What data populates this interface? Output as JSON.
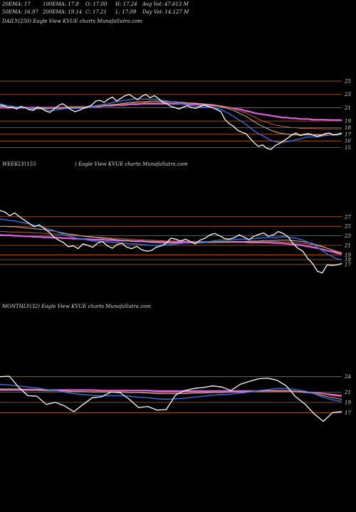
{
  "header": {
    "row1": [
      "20EMA: 17",
      "100EMA: 17.8",
      "O: 17.00",
      "H: 17.24",
      "Avg Vol: 47.613 M"
    ],
    "row2": [
      "50EMA: 16.97",
      "200EMA: 19.14",
      "C: 17.21",
      "L: 17.09",
      "Day Vol: 14.127 M"
    ]
  },
  "panels": {
    "daily_label": "DAILY(250) Eagle  View KVUE charts MunafaSutra.com",
    "weekly_label_left": "WEEKLY(155",
    "weekly_label_right": ") Eagle  View KVUE charts MunafaSutra.com",
    "monthly_label": "MONTHLY(32) Eagle  View KVUE charts MunafaSutra.com"
  },
  "colors": {
    "price": "#ffffff",
    "ema20": "#3b6fe0",
    "ema50": "#c9b991",
    "ema100": "#c05a38",
    "ema200": "#e060e0",
    "level": "#c0601a"
  },
  "chart_data": [
    {
      "type": "line",
      "name": "daily",
      "yticks": [
        25,
        23,
        21,
        19,
        18,
        17,
        16,
        15
      ],
      "ylim": [
        14.2,
        26.5
      ],
      "series": [
        {
          "name": "price",
          "values": [
            21.4,
            21.3,
            21.0,
            21.1,
            20.8,
            21.2,
            21.0,
            20.7,
            20.6,
            21.1,
            20.9,
            20.5,
            20.3,
            20.8,
            21.3,
            21.6,
            21.2,
            20.7,
            20.4,
            20.6,
            20.9,
            21.1,
            21.4,
            22.0,
            22.1,
            21.8,
            22.3,
            22.6,
            22.0,
            22.4,
            22.8,
            23.0,
            22.6,
            22.2,
            22.7,
            23.0,
            22.5,
            22.8,
            22.4,
            21.8,
            21.6,
            21.2,
            21.0,
            20.8,
            21.1,
            21.3,
            21.0,
            20.9,
            21.2,
            21.4,
            21.2,
            21.0,
            20.7,
            20.4,
            19.2,
            18.6,
            18.2,
            17.6,
            17.3,
            17.1,
            16.4,
            15.7,
            15.2,
            15.4,
            14.9,
            14.7,
            15.3,
            15.6,
            16.0,
            16.4,
            16.9,
            17.2,
            16.8,
            17.0,
            17.1,
            16.9,
            16.7,
            16.8,
            17.1,
            17.2,
            16.9,
            17.0,
            17.21
          ]
        },
        {
          "name": "20EMA",
          "values": [
            21.6,
            21.4,
            21.3,
            21.2,
            21.1,
            21.1,
            21.0,
            20.9,
            20.8,
            20.8,
            20.8,
            20.7,
            20.6,
            20.6,
            20.7,
            20.8,
            20.9,
            20.9,
            20.9,
            20.9,
            20.9,
            21.0,
            21.1,
            21.3,
            21.4,
            21.5,
            21.6,
            21.8,
            21.9,
            22.0,
            22.1,
            22.2,
            22.3,
            22.3,
            22.3,
            22.3,
            22.3,
            22.3,
            22.2,
            22.1,
            22.0,
            21.9,
            21.8,
            21.6,
            21.5,
            21.4,
            21.3,
            21.2,
            21.1,
            21.1,
            21.1,
            21.0,
            20.9,
            20.7,
            20.4,
            20.1,
            19.7,
            19.3,
            18.9,
            18.5,
            18.0,
            17.5,
            17.1,
            16.8,
            16.4,
            16.1,
            15.9,
            15.8,
            15.8,
            15.9,
            16.0,
            16.2,
            16.3,
            16.5,
            16.6,
            16.6,
            16.6,
            16.7,
            16.8,
            16.9,
            16.9,
            16.9,
            17.0
          ]
        },
        {
          "name": "50EMA",
          "values": [
            21.2,
            21.2,
            21.1,
            21.1,
            21.0,
            21.0,
            21.0,
            20.9,
            20.9,
            20.9,
            20.9,
            20.9,
            20.9,
            20.9,
            20.9,
            20.9,
            21.0,
            21.0,
            21.0,
            21.0,
            21.0,
            21.1,
            21.1,
            21.2,
            21.2,
            21.3,
            21.4,
            21.5,
            21.5,
            21.6,
            21.7,
            21.8,
            21.8,
            21.9,
            21.9,
            21.9,
            22.0,
            22.0,
            22.0,
            22.0,
            21.9,
            21.9,
            21.9,
            21.8,
            21.8,
            21.7,
            21.7,
            21.6,
            21.6,
            21.5,
            21.5,
            21.4,
            21.3,
            21.2,
            21.0,
            20.8,
            20.6,
            20.3,
            20.0,
            19.7,
            19.3,
            18.9,
            18.5,
            18.2,
            17.9,
            17.6,
            17.4,
            17.2,
            17.1,
            17.0,
            16.9,
            16.9,
            16.9,
            16.9,
            16.9,
            16.9,
            16.9,
            16.9,
            16.9,
            16.9,
            16.95,
            16.96,
            16.97
          ]
        },
        {
          "name": "100EMA",
          "values": [
            21.0,
            21.0,
            21.0,
            21.0,
            21.0,
            21.0,
            21.0,
            21.0,
            21.0,
            21.0,
            21.0,
            21.0,
            21.0,
            21.0,
            21.0,
            21.0,
            21.1,
            21.1,
            21.1,
            21.1,
            21.1,
            21.2,
            21.2,
            21.2,
            21.3,
            21.3,
            21.4,
            21.4,
            21.5,
            21.5,
            21.6,
            21.6,
            21.7,
            21.7,
            21.7,
            21.8,
            21.8,
            21.8,
            21.8,
            21.8,
            21.8,
            21.8,
            21.8,
            21.8,
            21.8,
            21.7,
            21.7,
            21.7,
            21.6,
            21.6,
            21.5,
            21.5,
            21.4,
            21.3,
            21.2,
            21.0,
            20.8,
            20.6,
            20.4,
            20.2,
            19.9,
            19.6,
            19.3,
            19.0,
            18.8,
            18.6,
            18.4,
            18.3,
            18.2,
            18.1,
            18.0,
            18.0,
            17.9,
            17.9,
            17.9,
            17.9,
            17.85,
            17.85,
            17.8,
            17.8,
            17.8,
            17.8,
            17.8
          ]
        },
        {
          "name": "200EMA",
          "values": [
            21.0,
            21.0,
            21.0,
            21.0,
            21.0,
            21.0,
            21.0,
            21.0,
            21.0,
            21.0,
            21.0,
            21.0,
            21.0,
            21.0,
            21.0,
            21.0,
            21.0,
            21.1,
            21.1,
            21.1,
            21.1,
            21.1,
            21.2,
            21.2,
            21.2,
            21.3,
            21.3,
            21.3,
            21.4,
            21.4,
            21.4,
            21.5,
            21.5,
            21.5,
            21.6,
            21.6,
            21.6,
            21.6,
            21.6,
            21.6,
            21.6,
            21.6,
            21.6,
            21.6,
            21.6,
            21.5,
            21.5,
            21.5,
            21.4,
            21.4,
            21.4,
            21.3,
            21.3,
            21.2,
            21.1,
            21.0,
            20.9,
            20.8,
            20.7,
            20.5,
            20.4,
            20.2,
            20.1,
            20.0,
            19.9,
            19.8,
            19.7,
            19.6,
            19.5,
            19.5,
            19.4,
            19.4,
            19.3,
            19.3,
            19.3,
            19.2,
            19.2,
            19.2,
            19.2,
            19.15,
            19.15,
            19.14,
            19.14
          ]
        }
      ]
    },
    {
      "type": "line",
      "name": "weekly",
      "yticks": [
        27,
        25,
        23,
        21,
        19,
        18,
        17
      ],
      "ylim": [
        14.0,
        29.5
      ],
      "series": [
        {
          "name": "price",
          "values": [
            28.3,
            28.0,
            27.2,
            27.8,
            27.0,
            26.3,
            25.6,
            24.9,
            25.3,
            24.6,
            23.8,
            22.8,
            22.1,
            21.6,
            20.7,
            20.9,
            20.3,
            21.3,
            21.0,
            20.6,
            21.5,
            21.8,
            20.9,
            20.4,
            21.2,
            21.4,
            20.6,
            20.3,
            20.8,
            20.1,
            19.8,
            19.9,
            20.6,
            20.9,
            21.4,
            22.5,
            22.3,
            21.9,
            22.3,
            21.8,
            21.3,
            22.1,
            22.5,
            23.2,
            23.5,
            23.0,
            22.4,
            22.3,
            22.6,
            23.2,
            22.7,
            22.2,
            22.9,
            23.3,
            23.6,
            22.9,
            23.2,
            23.9,
            23.5,
            22.8,
            21.4,
            20.4,
            19.8,
            18.3,
            17.2,
            15.6,
            15.2,
            16.9,
            16.8,
            16.9,
            17.21
          ]
        },
        {
          "name": "20EMA",
          "values": [
            26.5,
            26.4,
            26.2,
            26.1,
            25.9,
            25.7,
            25.5,
            25.2,
            25.0,
            24.7,
            24.4,
            24.1,
            23.7,
            23.4,
            23.0,
            22.7,
            22.4,
            22.3,
            22.1,
            21.9,
            21.9,
            21.8,
            21.7,
            21.6,
            21.6,
            21.5,
            21.4,
            21.3,
            21.3,
            21.2,
            21.1,
            21.0,
            21.0,
            21.0,
            21.1,
            21.2,
            21.3,
            21.4,
            21.5,
            21.5,
            21.5,
            21.6,
            21.7,
            21.8,
            22.0,
            22.1,
            22.1,
            22.1,
            22.2,
            22.3,
            22.3,
            22.3,
            22.4,
            22.5,
            22.6,
            22.6,
            22.6,
            22.7,
            22.8,
            22.7,
            22.6,
            22.4,
            22.1,
            21.7,
            21.2,
            20.6,
            19.9,
            19.2,
            18.7,
            18.2,
            17.9
          ]
        },
        {
          "name": "50EMA",
          "values": [
            25.0,
            25.0,
            24.9,
            24.9,
            24.8,
            24.7,
            24.6,
            24.5,
            24.4,
            24.3,
            24.1,
            24.0,
            23.8,
            23.6,
            23.4,
            23.3,
            23.1,
            22.9,
            22.8,
            22.7,
            22.6,
            22.5,
            22.4,
            22.3,
            22.2,
            22.1,
            22.0,
            21.9,
            21.8,
            21.8,
            21.7,
            21.6,
            21.6,
            21.5,
            21.5,
            21.5,
            21.5,
            21.5,
            21.5,
            21.5,
            21.5,
            21.5,
            21.6,
            21.6,
            21.6,
            21.7,
            21.7,
            21.7,
            21.8,
            21.8,
            21.8,
            21.9,
            21.9,
            21.9,
            22.0,
            22.0,
            22.0,
            22.1,
            22.1,
            22.1,
            22.0,
            21.9,
            21.8,
            21.6,
            21.4,
            21.1,
            20.8,
            20.4,
            20.0,
            19.6,
            19.3
          ]
        },
        {
          "name": "100EMA",
          "values": [
            23.9,
            23.9,
            23.8,
            23.8,
            23.8,
            23.7,
            23.7,
            23.6,
            23.6,
            23.5,
            23.5,
            23.4,
            23.3,
            23.3,
            23.2,
            23.1,
            23.0,
            23.0,
            22.9,
            22.8,
            22.7,
            22.7,
            22.6,
            22.5,
            22.5,
            22.4,
            22.3,
            22.3,
            22.2,
            22.2,
            22.1,
            22.1,
            22.0,
            22.0,
            21.9,
            21.9,
            21.9,
            21.9,
            21.9,
            21.8,
            21.8,
            21.8,
            21.8,
            21.8,
            21.8,
            21.8,
            21.8,
            21.8,
            21.8,
            21.8,
            21.8,
            21.8,
            21.8,
            21.8,
            21.8,
            21.8,
            21.8,
            21.8,
            21.7,
            21.7,
            21.6,
            21.5,
            21.4,
            21.3,
            21.1,
            20.9,
            20.7,
            20.4,
            20.1,
            19.8,
            19.5
          ]
        },
        {
          "name": "200EMA",
          "values": [
            23.2,
            23.1,
            23.1,
            23.0,
            23.0,
            22.9,
            22.9,
            22.8,
            22.8,
            22.7,
            22.7,
            22.6,
            22.6,
            22.5,
            22.5,
            22.4,
            22.4,
            22.3,
            22.3,
            22.2,
            22.2,
            22.2,
            22.1,
            22.1,
            22.0,
            22.0,
            22.0,
            21.9,
            21.9,
            21.9,
            21.8,
            21.8,
            21.8,
            21.8,
            21.7,
            21.7,
            21.7,
            21.7,
            21.7,
            21.7,
            21.7,
            21.7,
            21.7,
            21.7,
            21.7,
            21.7,
            21.7,
            21.7,
            21.7,
            21.7,
            21.7,
            21.6,
            21.6,
            21.6,
            21.6,
            21.6,
            21.5,
            21.5,
            21.4,
            21.3,
            21.2,
            21.1,
            21.0,
            20.8,
            20.6,
            20.4,
            20.2,
            19.9,
            19.7,
            19.4,
            19.2
          ]
        }
      ]
    },
    {
      "type": "line",
      "name": "monthly",
      "yticks": [
        24,
        21,
        19,
        17
      ],
      "ylim": [
        14.0,
        27.0
      ],
      "series": [
        {
          "name": "price",
          "values": [
            24.0,
            24.1,
            22.0,
            20.3,
            20.2,
            18.6,
            19.0,
            18.3,
            17.2,
            18.6,
            19.9,
            20.1,
            21.0,
            20.9,
            19.6,
            18.0,
            18.2,
            17.5,
            17.6,
            20.4,
            21.3,
            21.7,
            21.9,
            22.2,
            22.0,
            21.3,
            22.5,
            23.1,
            23.6,
            23.7,
            23.3,
            22.2,
            20.1,
            18.7,
            16.8,
            15.3,
            17.0,
            17.21
          ]
        },
        {
          "name": "20EMA",
          "values": [
            22.5,
            22.4,
            22.2,
            22.0,
            21.8,
            21.5,
            21.3,
            21.0,
            20.7,
            20.5,
            20.4,
            20.3,
            20.3,
            20.3,
            20.2,
            20.0,
            19.9,
            19.7,
            19.6,
            19.7,
            19.8,
            20.0,
            20.2,
            20.4,
            20.5,
            20.6,
            20.8,
            21.0,
            21.3,
            21.5,
            21.7,
            21.7,
            21.5,
            21.2,
            20.7,
            20.0,
            19.5,
            19.2
          ]
        },
        {
          "name": "50EMA",
          "values": [
            21.6,
            21.6,
            21.6,
            21.5,
            21.5,
            21.4,
            21.3,
            21.2,
            21.1,
            21.1,
            21.0,
            21.0,
            21.0,
            21.0,
            20.9,
            20.9,
            20.8,
            20.7,
            20.7,
            20.7,
            20.7,
            20.8,
            20.8,
            20.9,
            20.9,
            21.0,
            21.0,
            21.1,
            21.2,
            21.3,
            21.3,
            21.3,
            21.2,
            21.0,
            20.7,
            20.3,
            19.9,
            19.6
          ]
        },
        {
          "name": "100EMA",
          "values": [
            21.3,
            21.3,
            21.3,
            21.3,
            21.3,
            21.2,
            21.2,
            21.2,
            21.1,
            21.1,
            21.1,
            21.1,
            21.1,
            21.1,
            21.0,
            21.0,
            21.0,
            20.9,
            20.9,
            20.9,
            20.9,
            20.9,
            20.9,
            21.0,
            21.0,
            21.0,
            21.0,
            21.1,
            21.1,
            21.1,
            21.1,
            21.1,
            21.1,
            21.0,
            20.8,
            20.6,
            20.3,
            20.1
          ]
        },
        {
          "name": "200EMA",
          "values": [
            21.5,
            21.5,
            21.5,
            21.5,
            21.5,
            21.4,
            21.4,
            21.4,
            21.4,
            21.4,
            21.4,
            21.3,
            21.3,
            21.3,
            21.3,
            21.3,
            21.3,
            21.2,
            21.2,
            21.2,
            21.2,
            21.2,
            21.2,
            21.2,
            21.2,
            21.2,
            21.2,
            21.2,
            21.2,
            21.2,
            21.2,
            21.2,
            21.1,
            21.0,
            20.9,
            20.7,
            20.5,
            20.3
          ]
        }
      ]
    }
  ]
}
